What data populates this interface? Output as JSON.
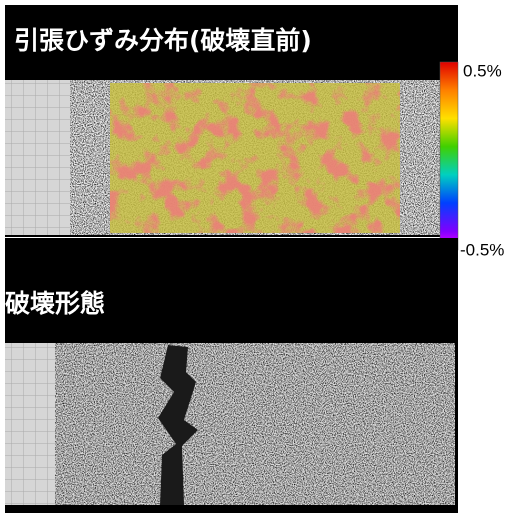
{
  "figure": {
    "strain_panel": {
      "title": "引張ひずみ分布(破壊直前)",
      "colorbar": {
        "max_label": "0.5%",
        "min_label": "-0.5%"
      }
    },
    "failure_panel": {
      "title": "破壊形態"
    }
  }
}
